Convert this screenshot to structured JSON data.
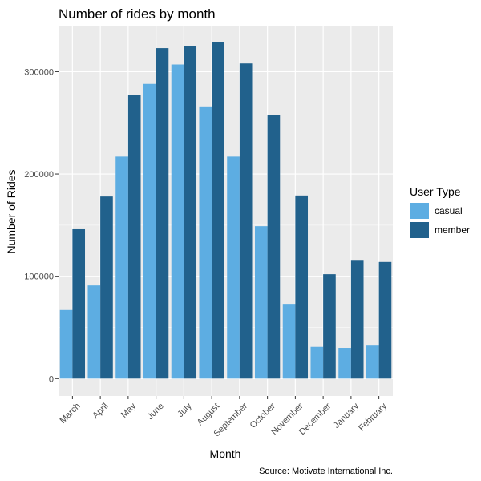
{
  "chart_data": {
    "type": "bar",
    "title": "Number of rides by month",
    "xlabel": "Month",
    "ylabel": "Number of Rides",
    "caption": "Source: Motivate International Inc.",
    "categories": [
      "March",
      "April",
      "May",
      "June",
      "July",
      "August",
      "September",
      "October",
      "November",
      "December",
      "January",
      "February"
    ],
    "series": [
      {
        "name": "casual",
        "color": "#5dade2",
        "values": [
          67000,
          91000,
          217000,
          288000,
          307000,
          266000,
          217000,
          149000,
          73000,
          31000,
          30000,
          33000
        ]
      },
      {
        "name": "member",
        "color": "#21618c",
        "values": [
          146000,
          178000,
          277000,
          323000,
          325000,
          329000,
          308000,
          258000,
          179000,
          102000,
          116000,
          114000
        ]
      }
    ],
    "y_ticks": [
      0,
      100000,
      200000,
      300000
    ],
    "y_tick_labels": [
      "0",
      "100000",
      "200000",
      "300000"
    ],
    "ylim": [
      -17000,
      345000
    ],
    "legend": {
      "title": "User Type",
      "position": "right"
    },
    "grid": true,
    "panel_background": "#ebebeb",
    "grid_color": "#ffffff"
  }
}
